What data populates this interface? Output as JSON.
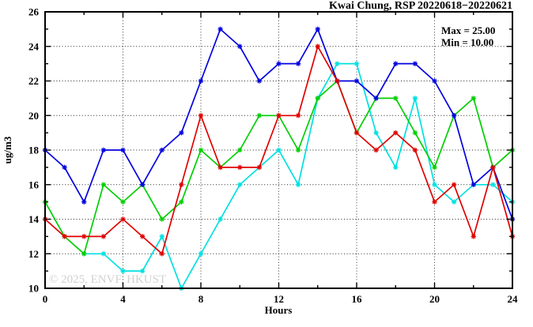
{
  "chart_data": {
    "type": "line",
    "title": "Kwai Chung, RSP 20220618−20220621",
    "xlabel": "Hours",
    "ylabel": "ug/m3",
    "xlim": [
      0,
      24
    ],
    "ylim": [
      10,
      26
    ],
    "xticks_major": [
      0,
      4,
      8,
      12,
      16,
      20,
      24
    ],
    "xticks_minor": [
      2,
      6,
      10,
      14,
      18,
      22
    ],
    "yticks_major": [
      10,
      12,
      14,
      16,
      18,
      20,
      22,
      24,
      26
    ],
    "yticks_minor": [
      11,
      13,
      15,
      17,
      19,
      21,
      23,
      25
    ],
    "grid_x": [
      4,
      8,
      12,
      16,
      20
    ],
    "grid_y": [
      12,
      14,
      16,
      18,
      20,
      22,
      24
    ],
    "legend_position": "top-right-inside",
    "annotations": [
      "Max = 25.00",
      "Min = 10.00"
    ],
    "watermark": "© 2025, ENVF, HKUST",
    "series": [
      {
        "name": "cyan",
        "color": "#00e0e0",
        "x_start": 2,
        "values": [
          12,
          12,
          11,
          11,
          13,
          10,
          12,
          14,
          16,
          17,
          18,
          16,
          21,
          23,
          23,
          19,
          17,
          21,
          16,
          15,
          16,
          16,
          15
        ]
      },
      {
        "name": "green",
        "color": "#00cf00",
        "x_start": 0,
        "values": [
          15,
          13,
          12,
          16,
          15,
          16,
          14,
          15,
          18,
          17,
          18,
          20,
          20,
          18,
          21,
          22,
          19,
          21,
          21,
          19,
          17,
          20,
          21,
          17,
          18
        ]
      },
      {
        "name": "blue",
        "color": "#0000e0",
        "x_start": 0,
        "values": [
          18,
          17,
          15,
          18,
          18,
          16,
          18,
          19,
          22,
          25,
          24,
          22,
          23,
          23,
          25,
          22,
          22,
          21,
          23,
          23,
          22,
          20,
          16,
          17,
          14
        ]
      },
      {
        "name": "red",
        "color": "#e00000",
        "x_start": 0,
        "values": [
          14,
          13,
          13,
          13,
          14,
          13,
          12,
          16,
          20,
          17,
          17,
          17,
          20,
          20,
          24,
          22,
          19,
          18,
          19,
          18,
          15,
          16,
          13,
          17,
          13
        ]
      }
    ]
  }
}
